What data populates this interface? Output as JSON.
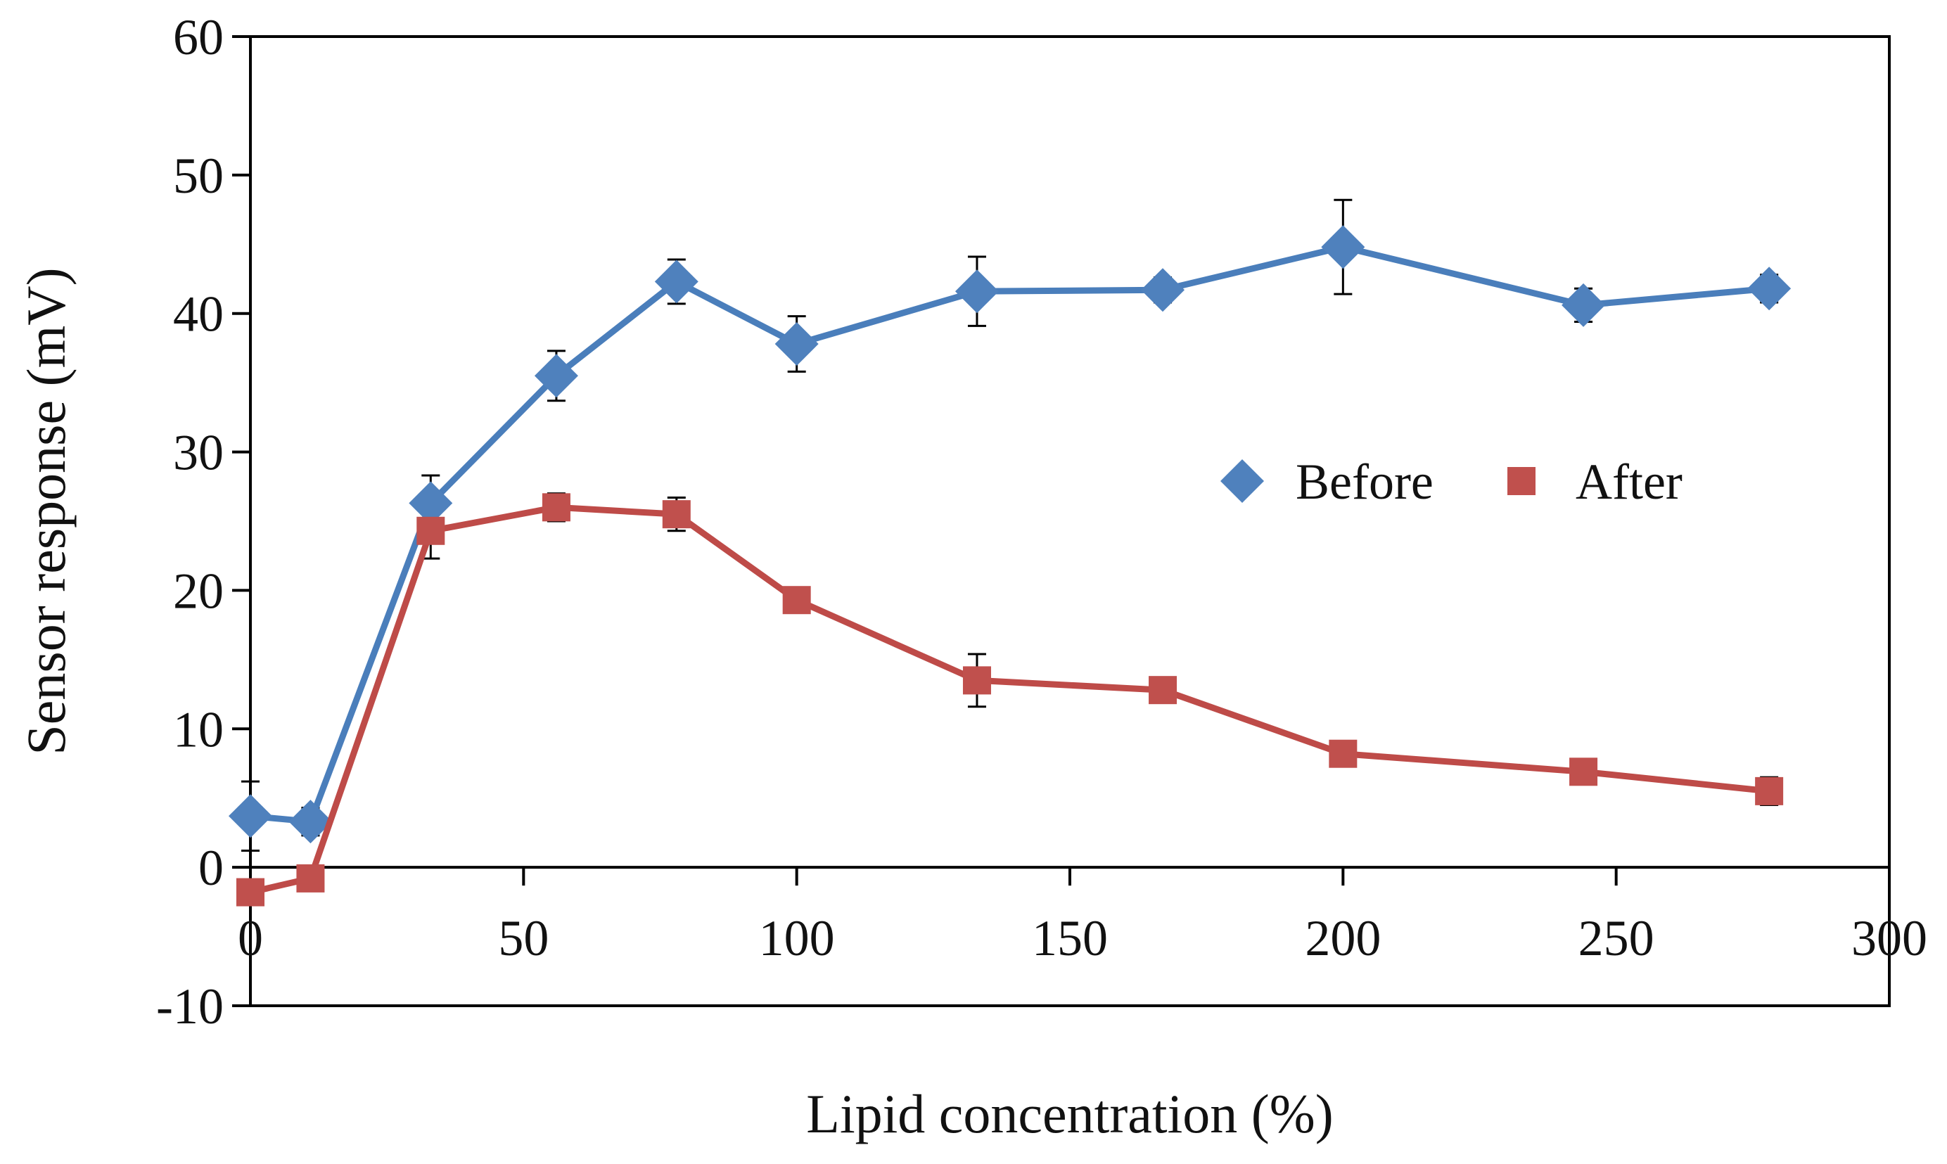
{
  "chart_data": {
    "type": "line",
    "title": "",
    "xlabel": "Lipid concentration (%)",
    "ylabel": "Sensor response (mV)",
    "xlim": [
      0,
      300
    ],
    "ylim": [
      -10,
      60
    ],
    "x_ticks": [
      0,
      50,
      100,
      150,
      200,
      250,
      300
    ],
    "y_ticks": [
      -10,
      0,
      10,
      20,
      30,
      40,
      50,
      60
    ],
    "grid": false,
    "legend_position": "center-right",
    "series": [
      {
        "name": "Before",
        "marker": "diamond",
        "color": "#4a7ebb",
        "marker_color": "#4f81bd",
        "x": [
          0,
          11,
          33,
          56,
          78,
          100,
          133,
          167,
          200,
          244,
          278
        ],
        "values": [
          3.7,
          3.3,
          26.3,
          35.5,
          42.3,
          37.8,
          41.6,
          41.7,
          44.8,
          40.6,
          41.8
        ],
        "error": [
          2.5,
          1.0,
          2.0,
          1.8,
          1.6,
          2.0,
          2.5,
          0.9,
          3.4,
          1.2,
          1.0
        ]
      },
      {
        "name": "After",
        "marker": "square",
        "color": "#be4b48",
        "marker_color": "#c0504d",
        "x": [
          0,
          11,
          33,
          56,
          78,
          100,
          133,
          167,
          200,
          244,
          278
        ],
        "values": [
          -1.8,
          -0.8,
          24.3,
          26.0,
          25.5,
          19.3,
          13.5,
          12.8,
          8.2,
          6.9,
          5.5
        ],
        "error": [
          0.6,
          0.6,
          2.0,
          1.0,
          1.2,
          0.7,
          1.9,
          0.6,
          0.6,
          0.6,
          1.0
        ]
      }
    ]
  }
}
